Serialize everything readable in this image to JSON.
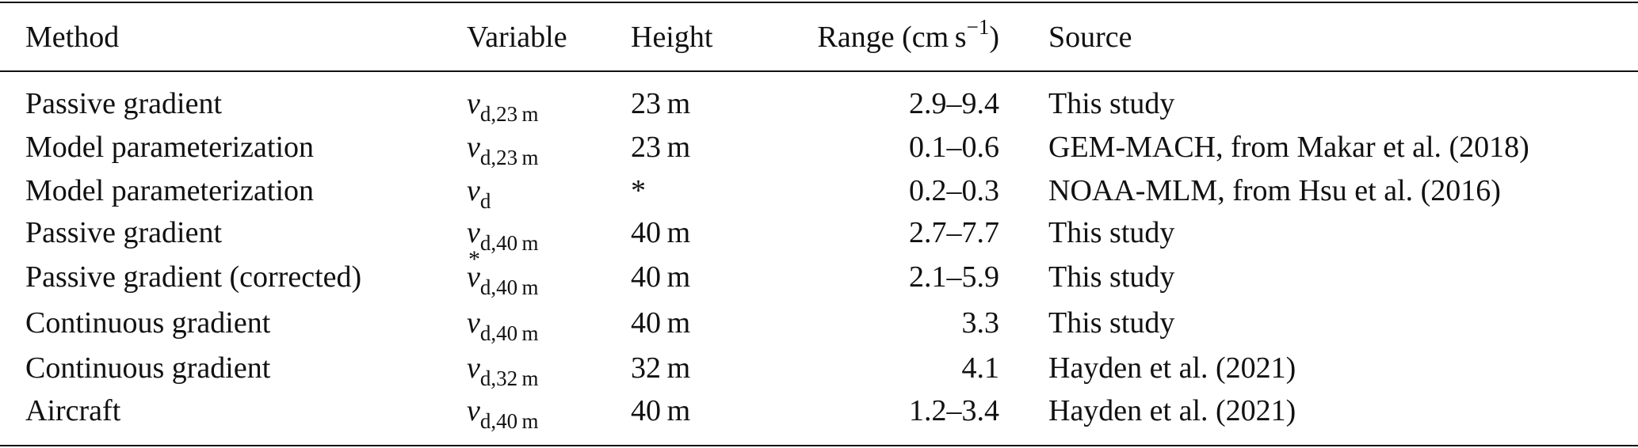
{
  "table": {
    "header": [
      "Method",
      "Variable",
      "Height",
      {
        "text": "Range (cm s",
        "sup": "−1",
        "tail": ")"
      },
      "Source"
    ],
    "rows": [
      [
        "Passive gradient",
        {
          "base": "v",
          "sub": "d,23 m"
        },
        "23 m",
        "2.9–9.4",
        "This study"
      ],
      [
        "Model parameterization",
        {
          "base": "v",
          "sub": "d,23 m"
        },
        "23 m",
        "0.1–0.6",
        "GEM-MACH, from Makar et al. (2018)"
      ],
      [
        "Model parameterization",
        {
          "base": "v",
          "sub": "d"
        },
        "*",
        "0.2–0.3",
        "NOAA-MLM, from Hsu et al. (2016)"
      ],
      [
        "Passive gradient",
        {
          "base": "v",
          "sub": "d,40 m"
        },
        "40 m",
        "2.7–7.7",
        "This study"
      ],
      [
        "Passive gradient (corrected)",
        {
          "base": "v",
          "sup": "*",
          "sub": "d,40 m"
        },
        "40 m",
        "2.1–5.9",
        "This study"
      ],
      [
        "Continuous gradient",
        {
          "base": "v",
          "sub": "d,40 m"
        },
        "40 m",
        "3.3",
        "This study"
      ],
      [
        "Continuous gradient",
        {
          "base": "v",
          "sub": "d,32 m"
        },
        "32 m",
        "4.1",
        "Hayden et al. (2021)"
      ],
      [
        "Aircraft",
        {
          "base": "v",
          "sub": "d,40 m"
        },
        "40 m",
        "1.2–3.4",
        "Hayden et al. (2021)"
      ]
    ]
  }
}
